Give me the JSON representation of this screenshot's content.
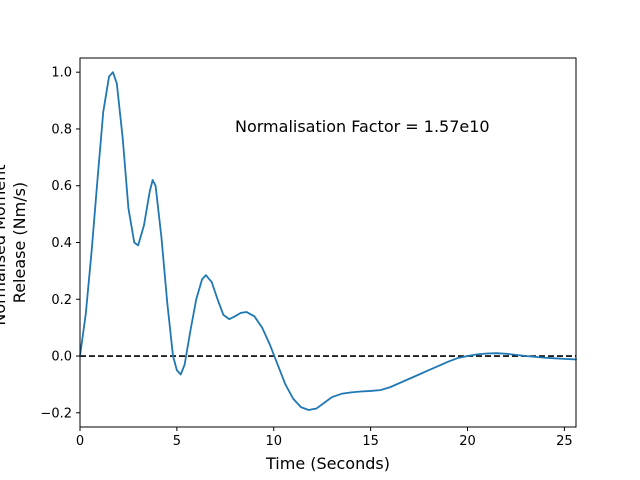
{
  "chart_data": {
    "type": "line",
    "title": "",
    "xlabel": "Time (Seconds)",
    "ylabel_lines": [
      "Normalised Moment",
      "Release (Nm/s)"
    ],
    "xlim": [
      0,
      25.6
    ],
    "ylim": [
      -0.25,
      1.05
    ],
    "xticks": [
      0,
      5,
      10,
      15,
      20,
      25
    ],
    "yticks": [
      -0.2,
      0.0,
      0.2,
      0.4,
      0.6,
      0.8,
      1.0
    ],
    "xtick_labels": [
      "0",
      "5",
      "10",
      "15",
      "20",
      "25"
    ],
    "ytick_labels": [
      "−0.2",
      "0.0",
      "0.2",
      "0.4",
      "0.6",
      "0.8",
      "1.0"
    ],
    "grid": false,
    "annotation": {
      "text": "Normalisation Factor = 1.57e10",
      "x": 8.0,
      "y": 0.81
    },
    "reference_line": {
      "y": 0.0,
      "style": "dashed",
      "color": "#000000"
    },
    "series": [
      {
        "color": "#1f77b4",
        "x": [
          0.0,
          0.3,
          0.6,
          0.9,
          1.2,
          1.5,
          1.7,
          1.9,
          2.2,
          2.5,
          2.8,
          3.0,
          3.3,
          3.6,
          3.75,
          3.9,
          4.2,
          4.5,
          4.8,
          5.0,
          5.2,
          5.4,
          5.7,
          6.0,
          6.3,
          6.5,
          6.8,
          7.1,
          7.4,
          7.7,
          8.0,
          8.3,
          8.6,
          9.0,
          9.4,
          9.8,
          10.2,
          10.6,
          11.0,
          11.4,
          11.8,
          12.2,
          12.6,
          13.0,
          13.5,
          14.0,
          14.5,
          15.0,
          15.5,
          16.0,
          16.5,
          17.0,
          17.5,
          18.0,
          18.5,
          19.0,
          19.5,
          20.0,
          20.5,
          21.0,
          21.5,
          22.0,
          22.5,
          23.0,
          23.5,
          24.0,
          24.5,
          25.0,
          25.6
        ],
        "y": [
          0.0,
          0.15,
          0.37,
          0.62,
          0.86,
          0.985,
          1.0,
          0.96,
          0.77,
          0.52,
          0.4,
          0.39,
          0.46,
          0.58,
          0.62,
          0.6,
          0.42,
          0.19,
          0.0,
          -0.05,
          -0.065,
          -0.03,
          0.09,
          0.2,
          0.27,
          0.285,
          0.26,
          0.2,
          0.145,
          0.13,
          0.14,
          0.152,
          0.155,
          0.14,
          0.1,
          0.04,
          -0.03,
          -0.1,
          -0.15,
          -0.18,
          -0.19,
          -0.185,
          -0.165,
          -0.145,
          -0.133,
          -0.128,
          -0.125,
          -0.123,
          -0.12,
          -0.11,
          -0.095,
          -0.08,
          -0.065,
          -0.05,
          -0.035,
          -0.02,
          -0.007,
          0.0,
          0.006,
          0.009,
          0.01,
          0.008,
          0.004,
          0.0,
          -0.003,
          -0.006,
          -0.008,
          -0.01,
          -0.012
        ]
      }
    ]
  }
}
